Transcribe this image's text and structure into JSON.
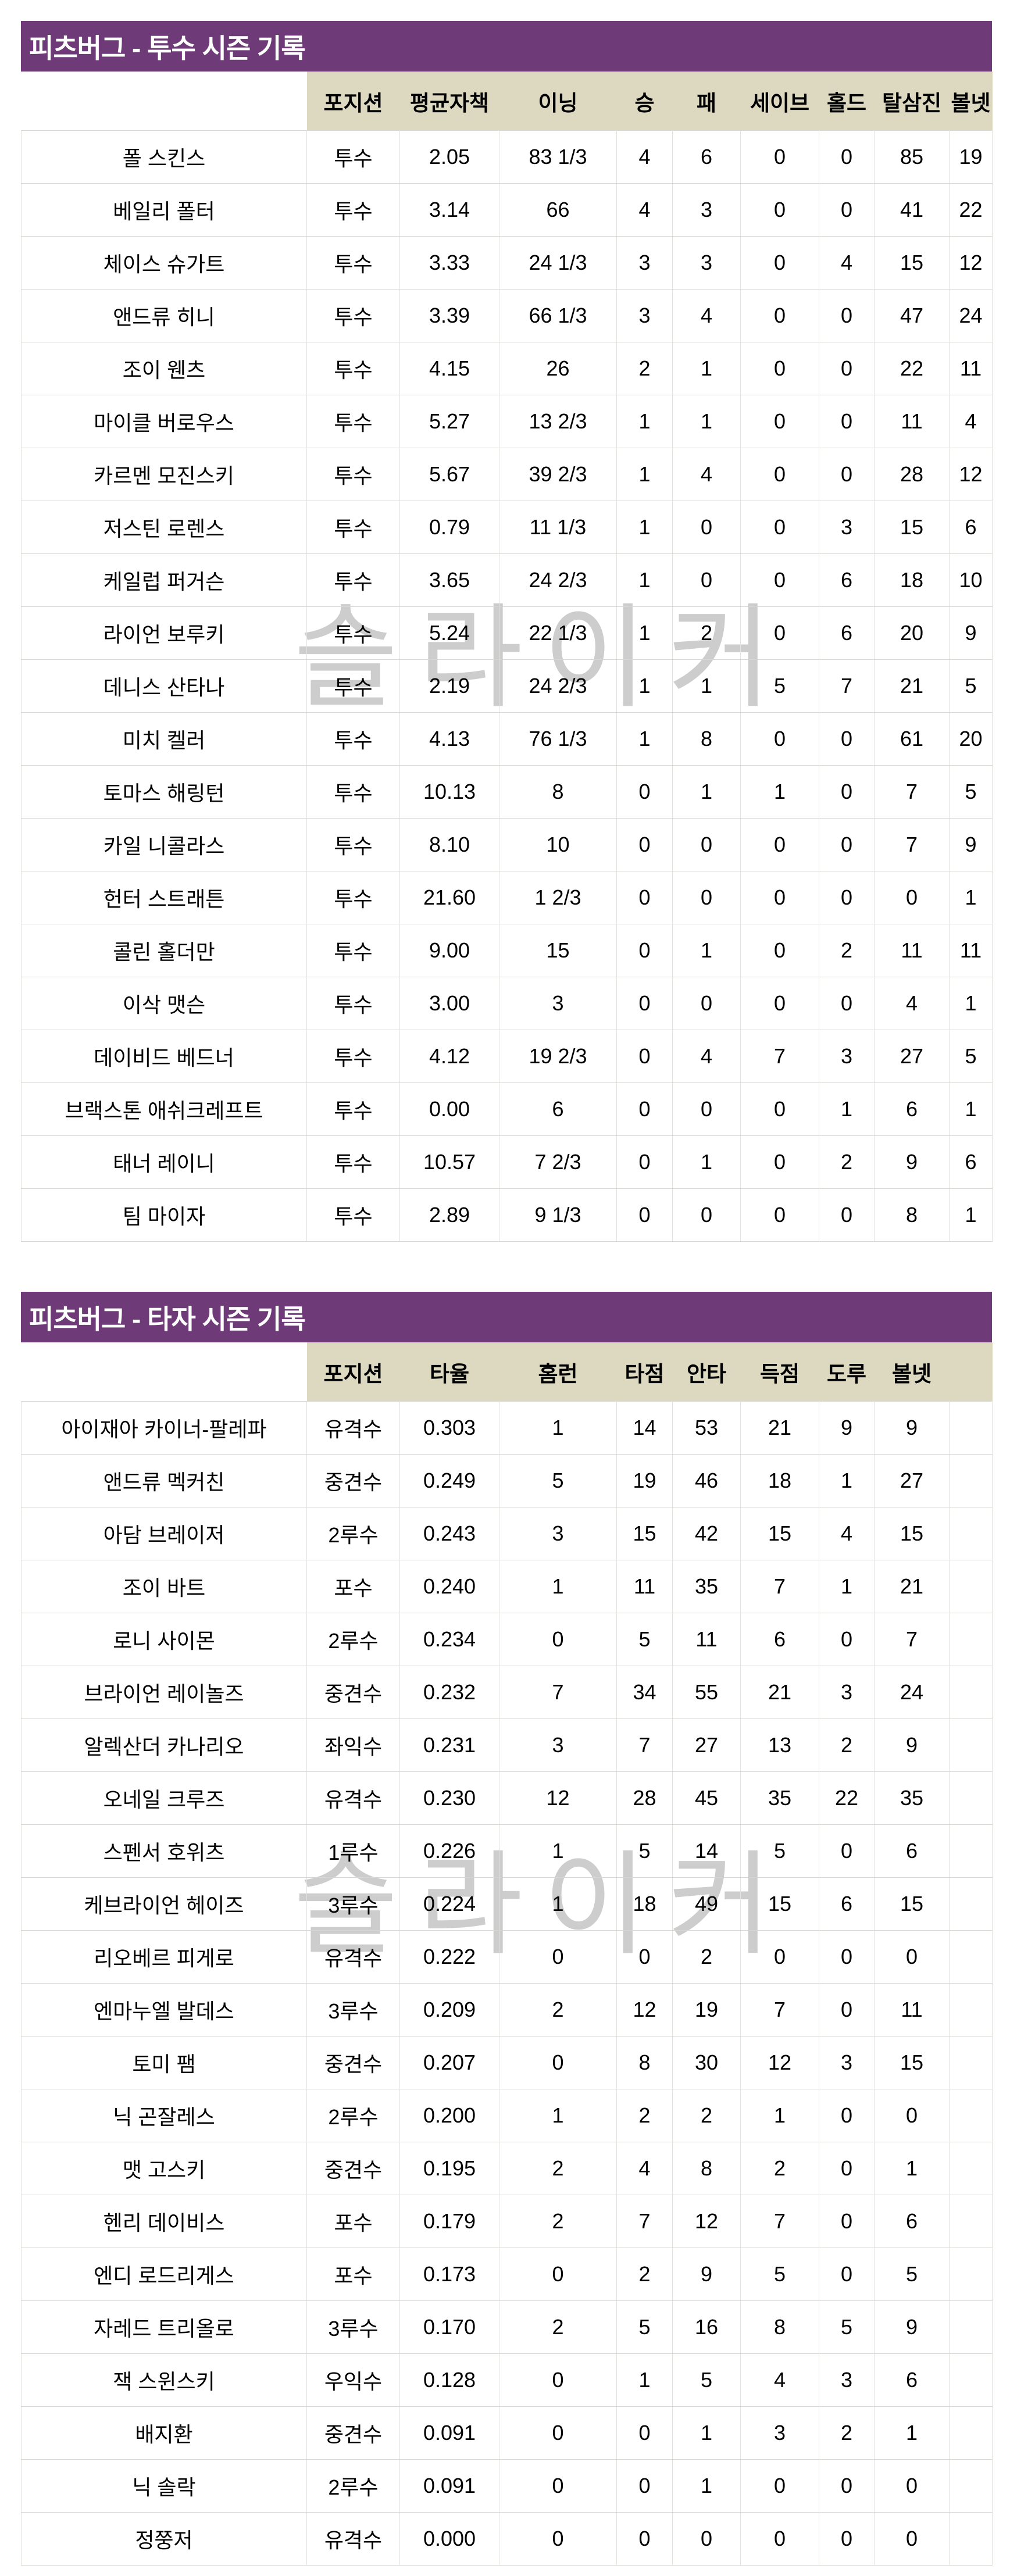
{
  "watermark": {
    "text": "슬라이커"
  },
  "colors": {
    "title_bar_bg": "#6e3a78",
    "title_text": "#ffffff",
    "header_bg": "#ddd8c0",
    "row_bg": "#ffffff",
    "grid_vertical": "#e2e2de",
    "grid_horizontal": "#d6d6d2",
    "body_text": "#000000",
    "watermark_text": "#cdcdcd"
  },
  "pitchers_table": {
    "title": "피츠버그 - 투수 시즌 기록",
    "header_cells": [
      "",
      "포지션",
      "평균자책",
      "이닝",
      "승",
      "패",
      "세이브",
      "홀드",
      "탈삼진",
      "볼넷"
    ],
    "rows": [
      [
        "폴 스킨스",
        "투수",
        "2.05",
        "83 1/3",
        "4",
        "6",
        "0",
        "0",
        "85",
        "19"
      ],
      [
        "베일리 폴터",
        "투수",
        "3.14",
        "66",
        "4",
        "3",
        "0",
        "0",
        "41",
        "22"
      ],
      [
        "체이스 슈가트",
        "투수",
        "3.33",
        "24 1/3",
        "3",
        "3",
        "0",
        "4",
        "15",
        "12"
      ],
      [
        "앤드류 히니",
        "투수",
        "3.39",
        "66 1/3",
        "3",
        "4",
        "0",
        "0",
        "47",
        "24"
      ],
      [
        "조이 웬츠",
        "투수",
        "4.15",
        "26",
        "2",
        "1",
        "0",
        "0",
        "22",
        "11"
      ],
      [
        "마이클 버로우스",
        "투수",
        "5.27",
        "13 2/3",
        "1",
        "1",
        "0",
        "0",
        "11",
        "4"
      ],
      [
        "카르멘 모진스키",
        "투수",
        "5.67",
        "39 2/3",
        "1",
        "4",
        "0",
        "0",
        "28",
        "12"
      ],
      [
        "저스틴 로렌스",
        "투수",
        "0.79",
        "11 1/3",
        "1",
        "0",
        "0",
        "3",
        "15",
        "6"
      ],
      [
        "케일럽 퍼거슨",
        "투수",
        "3.65",
        "24 2/3",
        "1",
        "0",
        "0",
        "6",
        "18",
        "10"
      ],
      [
        "라이언 보루키",
        "투수",
        "5.24",
        "22 1/3",
        "1",
        "2",
        "0",
        "6",
        "20",
        "9"
      ],
      [
        "데니스 산타나",
        "투수",
        "2.19",
        "24 2/3",
        "1",
        "1",
        "5",
        "7",
        "21",
        "5"
      ],
      [
        "미치 켈러",
        "투수",
        "4.13",
        "76 1/3",
        "1",
        "8",
        "0",
        "0",
        "61",
        "20"
      ],
      [
        "토마스 해링턴",
        "투수",
        "10.13",
        "8",
        "0",
        "1",
        "1",
        "0",
        "7",
        "5"
      ],
      [
        "카일 니콜라스",
        "투수",
        "8.10",
        "10",
        "0",
        "0",
        "0",
        "0",
        "7",
        "9"
      ],
      [
        "헌터 스트래튼",
        "투수",
        "21.60",
        "1 2/3",
        "0",
        "0",
        "0",
        "0",
        "0",
        "1"
      ],
      [
        "콜린 홀더만",
        "투수",
        "9.00",
        "15",
        "0",
        "1",
        "0",
        "2",
        "11",
        "11"
      ],
      [
        "이삭 맷슨",
        "투수",
        "3.00",
        "3",
        "0",
        "0",
        "0",
        "0",
        "4",
        "1"
      ],
      [
        "데이비드 베드너",
        "투수",
        "4.12",
        "19 2/3",
        "0",
        "4",
        "7",
        "3",
        "27",
        "5"
      ],
      [
        "브랙스톤 애쉬크레프트",
        "투수",
        "0.00",
        "6",
        "0",
        "0",
        "0",
        "1",
        "6",
        "1"
      ],
      [
        "태너 레이니",
        "투수",
        "10.57",
        "7 2/3",
        "0",
        "1",
        "0",
        "2",
        "9",
        "6"
      ],
      [
        "팀 마이자",
        "투수",
        "2.89",
        "9 1/3",
        "0",
        "0",
        "0",
        "0",
        "8",
        "1"
      ]
    ]
  },
  "batters_table": {
    "title": "피츠버그 - 타자 시즌 기록",
    "header_cells": [
      "",
      "포지션",
      "타율",
      "홈런",
      "타점",
      "안타",
      "득점",
      "도루",
      "볼넷",
      ""
    ],
    "rows": [
      [
        "아이재아 카이너-팔레파",
        "유격수",
        "0.303",
        "1",
        "14",
        "53",
        "21",
        "9",
        "9",
        ""
      ],
      [
        "앤드류 멕커친",
        "중견수",
        "0.249",
        "5",
        "19",
        "46",
        "18",
        "1",
        "27",
        ""
      ],
      [
        "아담 브레이저",
        "2루수",
        "0.243",
        "3",
        "15",
        "42",
        "15",
        "4",
        "15",
        ""
      ],
      [
        "조이 바트",
        "포수",
        "0.240",
        "1",
        "11",
        "35",
        "7",
        "1",
        "21",
        ""
      ],
      [
        "로니 사이몬",
        "2루수",
        "0.234",
        "0",
        "5",
        "11",
        "6",
        "0",
        "7",
        ""
      ],
      [
        "브라이언 레이놀즈",
        "중견수",
        "0.232",
        "7",
        "34",
        "55",
        "21",
        "3",
        "24",
        ""
      ],
      [
        "알렉산더 카나리오",
        "좌익수",
        "0.231",
        "3",
        "7",
        "27",
        "13",
        "2",
        "9",
        ""
      ],
      [
        "오네일 크루즈",
        "유격수",
        "0.230",
        "12",
        "28",
        "45",
        "35",
        "22",
        "35",
        ""
      ],
      [
        "스펜서 호위츠",
        "1루수",
        "0.226",
        "1",
        "5",
        "14",
        "5",
        "0",
        "6",
        ""
      ],
      [
        "케브라이언 헤이즈",
        "3루수",
        "0.224",
        "1",
        "18",
        "49",
        "15",
        "6",
        "15",
        ""
      ],
      [
        "리오베르 피게로",
        "유격수",
        "0.222",
        "0",
        "0",
        "2",
        "0",
        "0",
        "0",
        ""
      ],
      [
        "엔마누엘 발데스",
        "3루수",
        "0.209",
        "2",
        "12",
        "19",
        "7",
        "0",
        "11",
        ""
      ],
      [
        "토미 팸",
        "중견수",
        "0.207",
        "0",
        "8",
        "30",
        "12",
        "3",
        "15",
        ""
      ],
      [
        "닉 곤잘레스",
        "2루수",
        "0.200",
        "1",
        "2",
        "2",
        "1",
        "0",
        "0",
        ""
      ],
      [
        "맷 고스키",
        "중견수",
        "0.195",
        "2",
        "4",
        "8",
        "2",
        "0",
        "1",
        ""
      ],
      [
        "헨리 데이비스",
        "포수",
        "0.179",
        "2",
        "7",
        "12",
        "7",
        "0",
        "6",
        ""
      ],
      [
        "엔디 로드리게스",
        "포수",
        "0.173",
        "0",
        "2",
        "9",
        "5",
        "0",
        "5",
        ""
      ],
      [
        "자레드 트리올로",
        "3루수",
        "0.170",
        "2",
        "5",
        "16",
        "8",
        "5",
        "9",
        ""
      ],
      [
        "잭 스윈스키",
        "우익수",
        "0.128",
        "0",
        "1",
        "5",
        "4",
        "3",
        "6",
        ""
      ],
      [
        "배지환",
        "중견수",
        "0.091",
        "0",
        "0",
        "1",
        "3",
        "2",
        "1",
        ""
      ],
      [
        "닉 솔락",
        "2루수",
        "0.091",
        "0",
        "0",
        "1",
        "0",
        "0",
        "0",
        ""
      ],
      [
        "정쭝저",
        "유격수",
        "0.000",
        "0",
        "0",
        "0",
        "0",
        "0",
        "0",
        ""
      ]
    ]
  }
}
